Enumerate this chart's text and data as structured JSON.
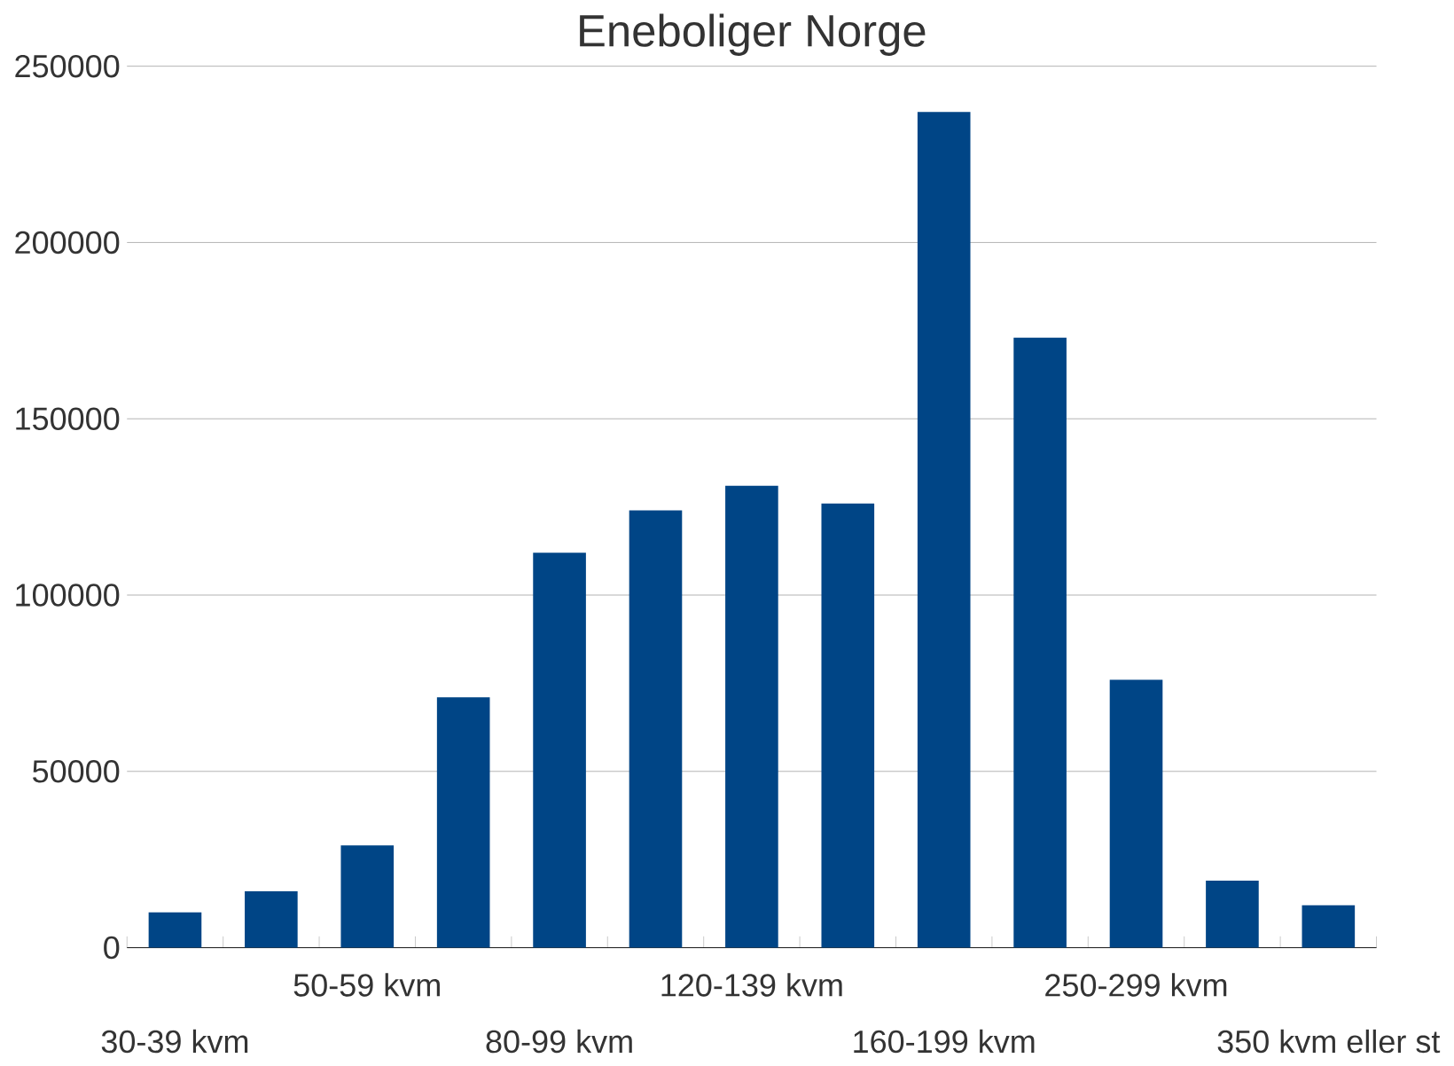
{
  "chart_data": {
    "type": "bar",
    "title": "Eneboliger Norge",
    "categories": [
      "30-39 kvm",
      null,
      "50-59 kvm",
      null,
      "80-99 kvm",
      null,
      "120-139 kvm",
      null,
      "160-199 kvm",
      null,
      "250-299 kvm",
      null,
      "350 kvm eller st"
    ],
    "values": [
      10000,
      16000,
      29000,
      71000,
      112000,
      124000,
      131000,
      126000,
      237000,
      173000,
      76000,
      19000,
      12000
    ],
    "color": "#004586",
    "ylim": [
      0,
      250000
    ],
    "yticks": [
      0,
      50000,
      100000,
      150000,
      200000,
      250000
    ],
    "grid": "y"
  }
}
